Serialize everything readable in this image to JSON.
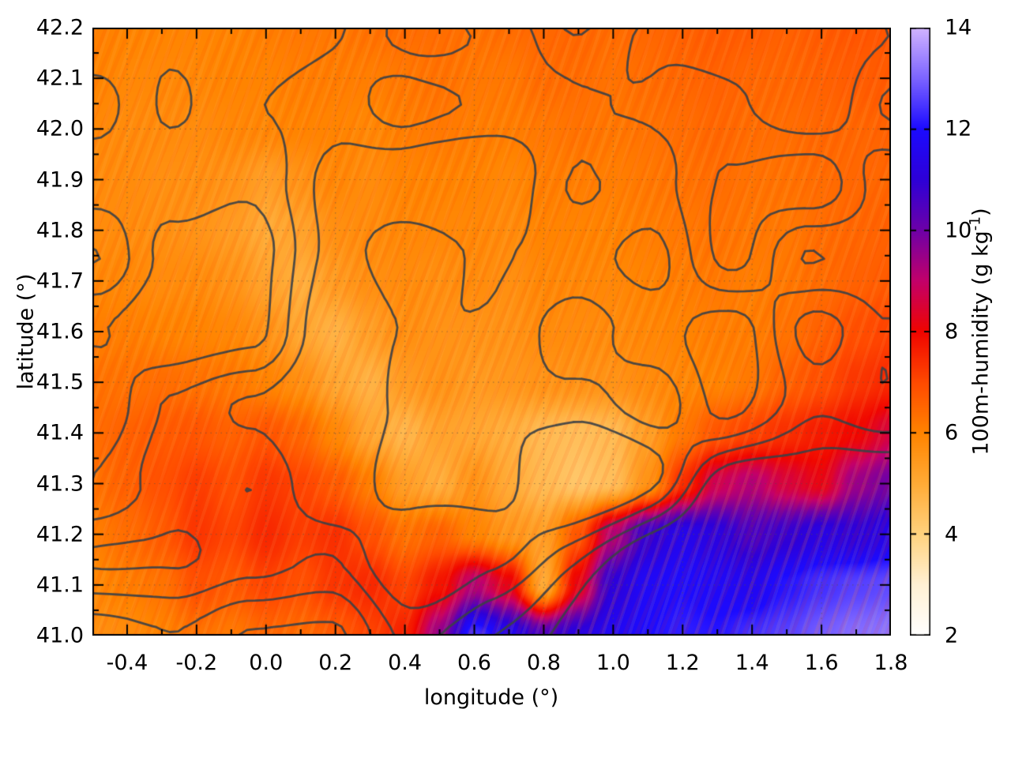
{
  "chart_data": {
    "type": "heatmap",
    "title": "",
    "xlabel": "longitude (°)",
    "ylabel": "latitude (°)",
    "colorbar_label": {
      "text": "100m-humidity (g kg",
      "sup": "-1",
      "close": ")"
    },
    "xlim": [
      -0.5,
      1.8
    ],
    "ylim": [
      41.0,
      42.2
    ],
    "cbrange": [
      2,
      14
    ],
    "grid_on": true,
    "xticks": {
      "values": [
        -0.4,
        -0.2,
        0.0,
        0.2,
        0.4,
        0.6,
        0.8,
        1.0,
        1.2,
        1.4,
        1.6,
        1.8
      ],
      "labels": [
        "-0.4",
        "-0.2",
        "0.0",
        "0.2",
        "0.4",
        "0.6",
        "0.8",
        "1.0",
        "1.2",
        "1.4",
        "1.6",
        "1.8"
      ],
      "minor_step": 0.1
    },
    "yticks": {
      "values": [
        41.0,
        41.1,
        41.2,
        41.3,
        41.4,
        41.5,
        41.6,
        41.7,
        41.8,
        41.9,
        42.0,
        42.1,
        42.2
      ],
      "labels": [
        "41.0",
        "41.1",
        "41.2",
        "41.3",
        "41.4",
        "41.5",
        "41.6",
        "41.7",
        "41.8",
        "41.9",
        "42.0",
        "42.1",
        "42.2"
      ],
      "minor_step": 0.05
    },
    "cbticks": {
      "values": [
        2,
        4,
        6,
        8,
        10,
        12,
        14
      ],
      "labels": [
        "2",
        "4",
        "6",
        "8",
        "10",
        "12",
        "14"
      ]
    },
    "palette_stops": [
      [
        2,
        "#ffffff"
      ],
      [
        3,
        "#fff1d4"
      ],
      [
        4,
        "#ffd27e"
      ],
      [
        5,
        "#ffab36"
      ],
      [
        6,
        "#ff8400"
      ],
      [
        7,
        "#ff4a00"
      ],
      [
        8,
        "#f00500"
      ],
      [
        9,
        "#c3006a"
      ],
      [
        10,
        "#6e00a8"
      ],
      [
        11,
        "#2e00d8"
      ],
      [
        12,
        "#1c0bff"
      ],
      [
        13,
        "#7c64ff"
      ],
      [
        14,
        "#d2b4ff"
      ]
    ],
    "humidity_grid": {
      "units": "g kg-1",
      "lons": [
        -0.5,
        -0.4,
        -0.3,
        -0.2,
        -0.1,
        0.0,
        0.1,
        0.2,
        0.3,
        0.4,
        0.5,
        0.6,
        0.7,
        0.8,
        0.9,
        1.0,
        1.1,
        1.2,
        1.3,
        1.4,
        1.5,
        1.6,
        1.7,
        1.8
      ],
      "lats_top_to_bottom": [
        42.2,
        42.1,
        42.0,
        41.9,
        41.8,
        41.7,
        41.6,
        41.5,
        41.4,
        41.3,
        41.2,
        41.1,
        41.0
      ],
      "values": [
        [
          6.1,
          6.0,
          6.0,
          6.0,
          6.0,
          6.1,
          6.2,
          6.2,
          6.3,
          6.4,
          6.4,
          6.3,
          6.4,
          6.5,
          6.5,
          6.4,
          6.5,
          6.6,
          6.7,
          6.7,
          6.6,
          6.7,
          6.8,
          6.8
        ],
        [
          6.0,
          5.9,
          5.9,
          5.9,
          6.0,
          6.0,
          6.1,
          6.1,
          6.1,
          6.2,
          6.3,
          6.2,
          6.2,
          6.4,
          6.4,
          6.3,
          6.4,
          6.5,
          6.6,
          6.5,
          6.5,
          6.6,
          6.7,
          6.7
        ],
        [
          5.9,
          5.8,
          5.8,
          5.8,
          5.9,
          5.9,
          6.0,
          6.0,
          5.9,
          6.1,
          6.2,
          6.1,
          6.1,
          6.2,
          6.3,
          6.2,
          6.3,
          6.4,
          6.5,
          6.4,
          6.4,
          6.5,
          6.5,
          6.6
        ],
        [
          5.8,
          5.8,
          5.7,
          5.7,
          5.6,
          5.3,
          5.6,
          5.9,
          5.8,
          6.0,
          6.0,
          6.0,
          5.9,
          6.1,
          6.1,
          6.1,
          6.2,
          6.3,
          6.4,
          6.3,
          6.3,
          6.4,
          6.5,
          6.5
        ],
        [
          5.8,
          5.8,
          5.7,
          5.6,
          5.4,
          5.0,
          5.2,
          5.7,
          5.8,
          5.9,
          5.9,
          5.9,
          5.8,
          6.0,
          6.0,
          6.0,
          6.1,
          6.2,
          6.3,
          6.2,
          6.2,
          6.4,
          6.5,
          6.6
        ],
        [
          5.9,
          5.9,
          5.8,
          5.8,
          5.6,
          5.2,
          4.9,
          5.4,
          5.7,
          5.8,
          5.7,
          5.8,
          5.7,
          5.9,
          5.9,
          5.9,
          6.0,
          6.1,
          6.2,
          6.1,
          6.2,
          6.4,
          6.6,
          6.7
        ],
        [
          6.1,
          6.1,
          6.0,
          6.0,
          5.9,
          5.6,
          5.1,
          4.8,
          5.3,
          5.7,
          5.6,
          5.6,
          5.6,
          5.8,
          5.8,
          5.8,
          5.9,
          6.0,
          6.1,
          6.1,
          6.3,
          6.6,
          6.9,
          7.1
        ],
        [
          6.3,
          6.3,
          6.4,
          6.3,
          6.2,
          6.0,
          5.7,
          5.1,
          4.8,
          5.4,
          5.6,
          5.4,
          5.5,
          5.6,
          5.6,
          5.6,
          5.8,
          5.9,
          6.0,
          6.2,
          6.6,
          6.9,
          7.3,
          7.5
        ],
        [
          6.4,
          6.6,
          6.7,
          6.8,
          6.6,
          6.8,
          6.5,
          5.9,
          5.1,
          4.7,
          5.2,
          5.1,
          4.9,
          4.6,
          4.5,
          4.6,
          5.3,
          6.2,
          6.8,
          7.1,
          7.4,
          7.7,
          8.0,
          8.6
        ],
        [
          6.3,
          6.6,
          6.9,
          7.2,
          6.9,
          7.3,
          7.1,
          6.7,
          6.1,
          5.3,
          4.9,
          5.6,
          5.0,
          4.6,
          4.3,
          4.5,
          5.6,
          7.4,
          8.8,
          9.2,
          8.6,
          8.2,
          9.5,
          10.0
        ],
        [
          6.1,
          6.4,
          6.7,
          7.3,
          7.1,
          7.5,
          7.2,
          7.4,
          6.9,
          6.3,
          6.6,
          6.0,
          5.5,
          5.3,
          6.8,
          9.2,
          10.9,
          11.5,
          11.2,
          10.6,
          10.9,
          11.3,
          11.1,
          11.4
        ],
        [
          5.9,
          6.1,
          6.3,
          6.9,
          6.7,
          7.1,
          6.9,
          7.3,
          7.5,
          7.1,
          7.8,
          9.2,
          8.2,
          5.0,
          8.2,
          11.1,
          11.8,
          12.0,
          11.8,
          11.6,
          12.1,
          12.4,
          12.6,
          12.7
        ],
        [
          5.7,
          5.8,
          6.0,
          6.3,
          6.2,
          6.5,
          6.4,
          6.7,
          7.1,
          7.6,
          9.6,
          12.4,
          11.6,
          10.5,
          11.2,
          11.7,
          12.0,
          12.2,
          12.1,
          12.4,
          12.6,
          12.9,
          13.1,
          13.2
        ]
      ]
    },
    "contour_overlay": {
      "color": "#3b4046",
      "opacity": 0.9,
      "line_width": 2.8,
      "levels": [
        0.55,
        1.05,
        1.55,
        2.05
      ],
      "noise": {
        "seed": 11,
        "cols": 10,
        "rows": 8,
        "amp": 1.9,
        "base": 0.15
      },
      "peaks": [
        {
          "x": 0.72,
          "y": 42.08,
          "sx": 0.3,
          "sy": 0.16,
          "h": 1.0
        },
        {
          "x": 0.5,
          "y": 41.68,
          "sx": 0.33,
          "sy": 0.22,
          "h": 0.9
        },
        {
          "x": 1.35,
          "y": 41.5,
          "sx": 0.28,
          "sy": 0.18,
          "h": 1.0
        },
        {
          "x": 0.65,
          "y": 41.22,
          "sx": 0.3,
          "sy": 0.14,
          "h": 1.6
        },
        {
          "x": 1.02,
          "y": 41.33,
          "sx": 0.18,
          "sy": 0.1,
          "h": 1.2
        },
        {
          "x": -0.15,
          "y": 41.38,
          "sx": 0.3,
          "sy": 0.2,
          "h": 0.7
        },
        {
          "x": 1.6,
          "y": 42.1,
          "sx": 0.25,
          "sy": 0.15,
          "h": 0.8
        },
        {
          "x": 1.5,
          "y": 41.05,
          "sx": 0.5,
          "sy": 0.22,
          "h": -2.6
        }
      ]
    },
    "style": {
      "border_color": "#000000",
      "grid_color": "rgba(90,80,70,0.55)",
      "tick_color": "#000000"
    }
  }
}
